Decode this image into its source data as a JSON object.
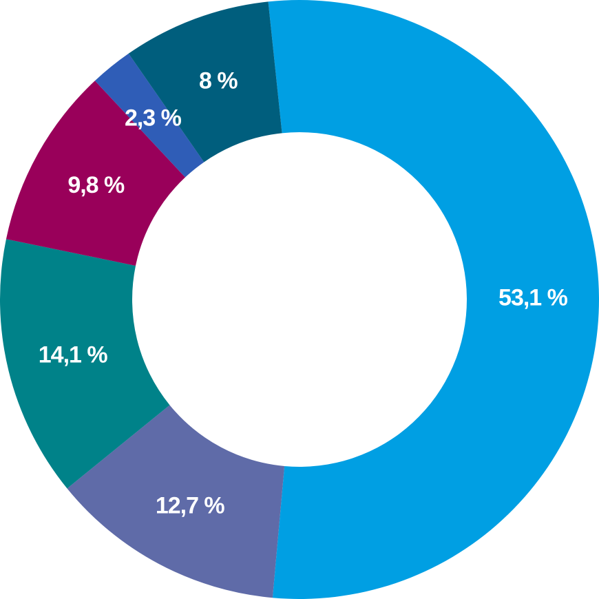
{
  "chart_data": {
    "type": "pie",
    "style": "donut",
    "slices": [
      {
        "label": "53,1 %",
        "value": 53.1,
        "color": "#009FE3"
      },
      {
        "label": "12,7 %",
        "value": 12.7,
        "color": "#5F6BA8"
      },
      {
        "label": "14,1 %",
        "value": 14.1,
        "color": "#008289"
      },
      {
        "label": "9,8 %",
        "value": 9.8,
        "color": "#99005A"
      },
      {
        "label": "2,3 %",
        "value": 2.3,
        "color": "#2F5DB7"
      },
      {
        "label": "8 %",
        "value": 8.0,
        "color": "#005E7D"
      }
    ]
  }
}
